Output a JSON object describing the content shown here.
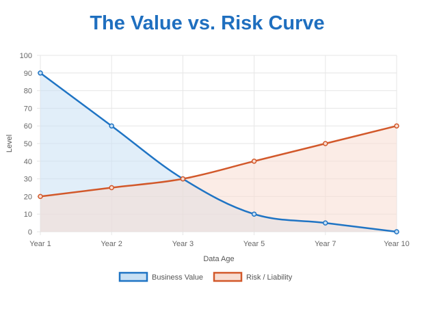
{
  "chart_data": {
    "type": "line",
    "title": "The Value vs. Risk Curve",
    "xlabel": "Data Age",
    "ylabel": "Level",
    "categories": [
      "Year 1",
      "Year 2",
      "Year 3",
      "Year 5",
      "Year 7",
      "Year 10"
    ],
    "ylim": [
      0,
      100
    ],
    "yticks": [
      0,
      10,
      20,
      30,
      40,
      50,
      60,
      70,
      80,
      90,
      100
    ],
    "grid": true,
    "legend_position": "bottom",
    "series": [
      {
        "name": "Business Value",
        "values": [
          90,
          60,
          30,
          10,
          5,
          0
        ],
        "color": "#1f74c4",
        "fill": "#c8e0f4"
      },
      {
        "name": "Risk / Liability",
        "values": [
          20,
          25,
          30,
          40,
          50,
          60
        ],
        "color": "#d2582a",
        "fill": "#f8ddd2"
      }
    ]
  }
}
